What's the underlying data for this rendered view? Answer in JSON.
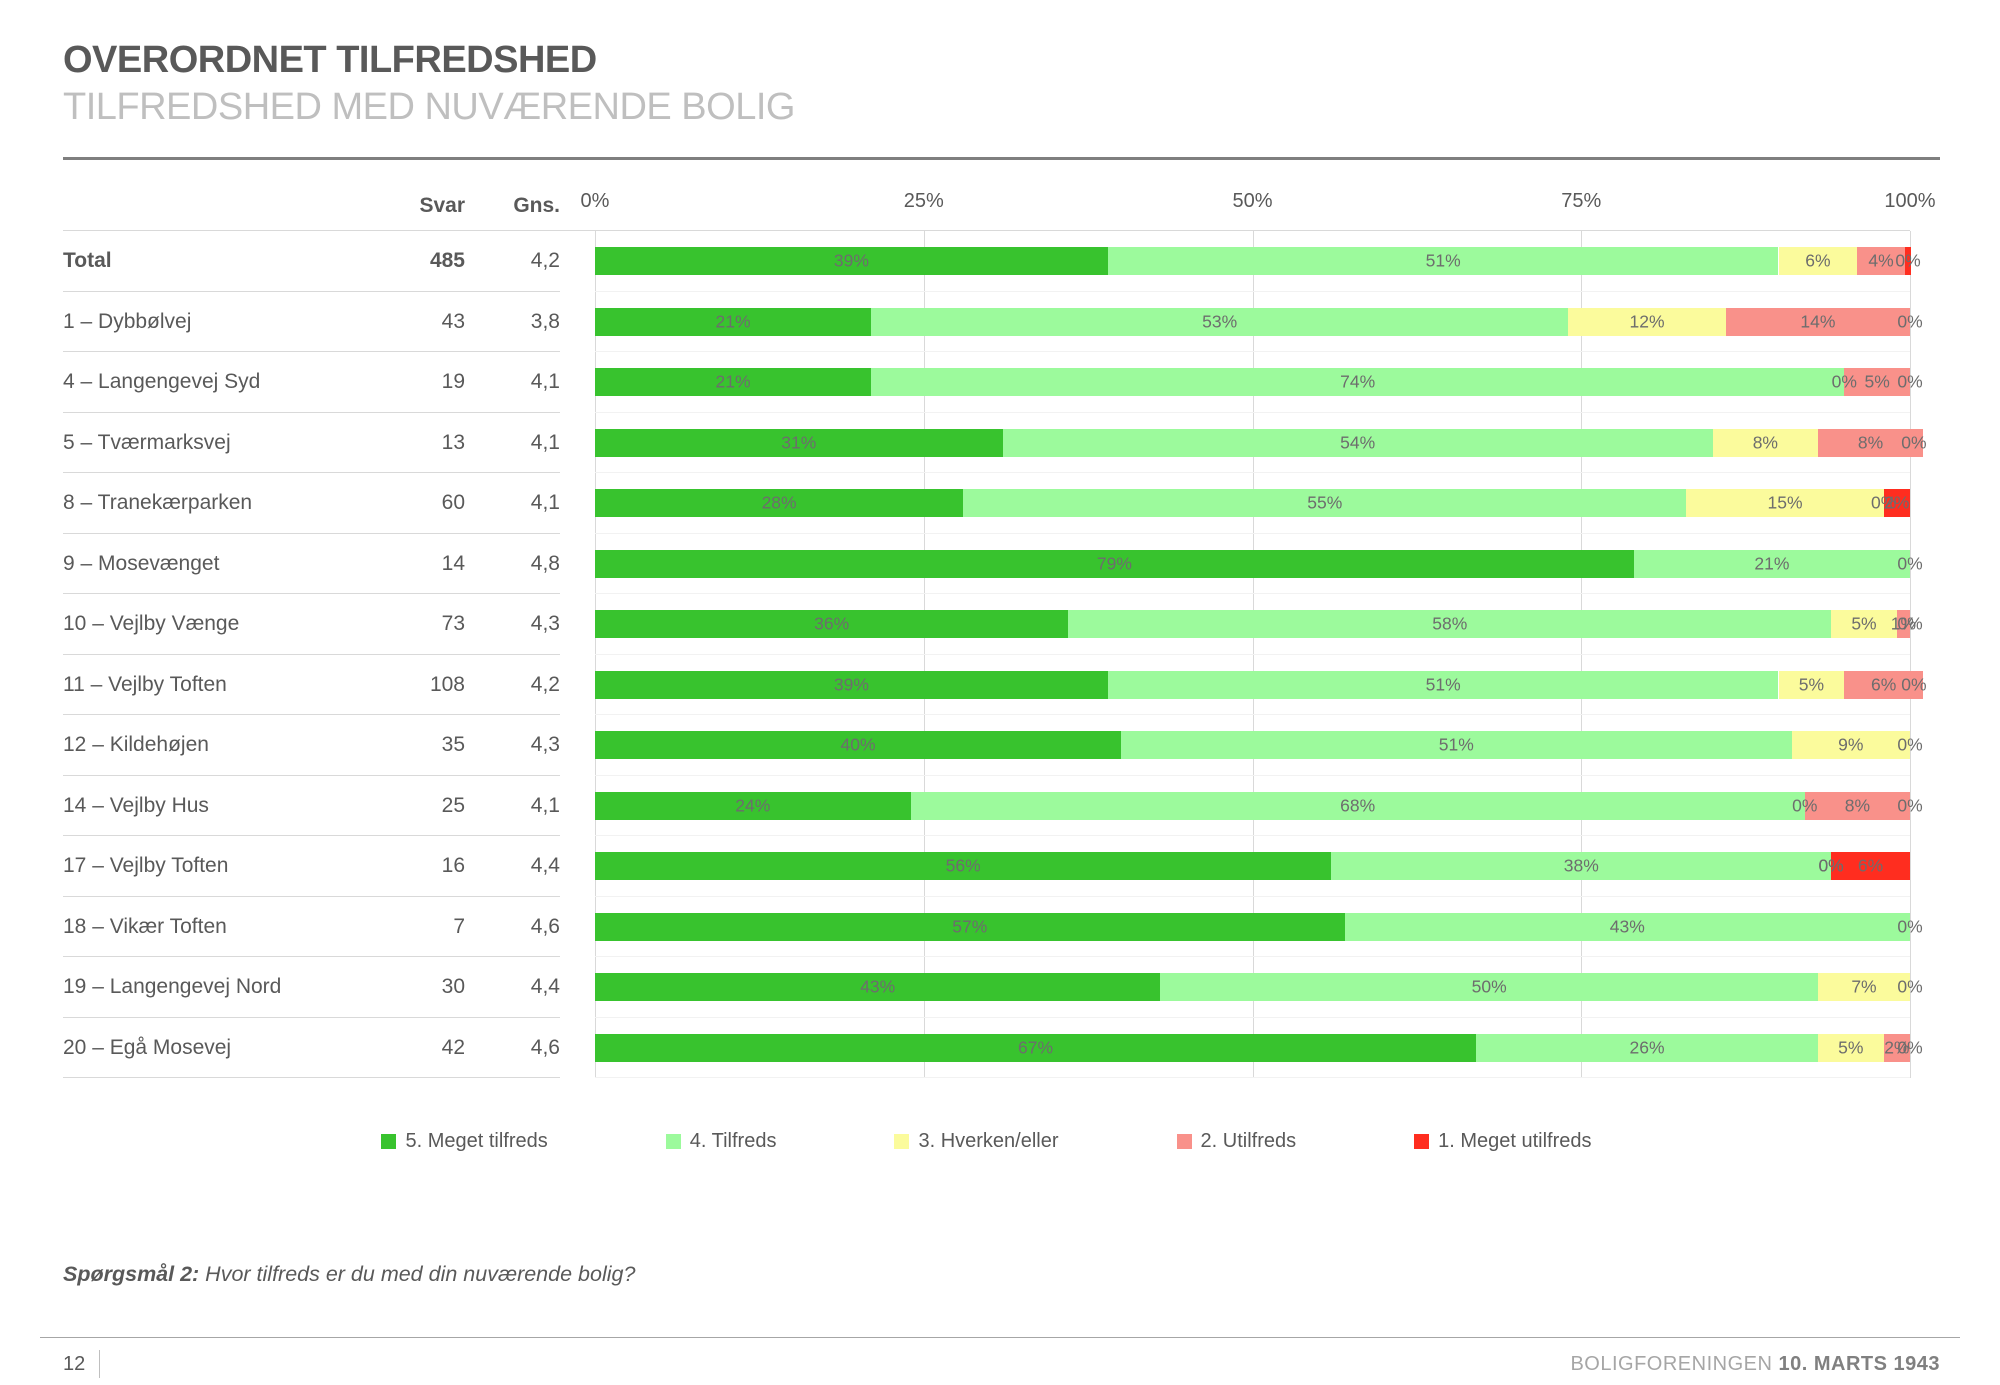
{
  "header": {
    "title": "OVERORDNET TILFREDSHED",
    "subtitle": "TILFREDSHED MED NUVÆRENDE BOLIG"
  },
  "table_headers": {
    "svar": "Svar",
    "gns": "Gns."
  },
  "chart_data": {
    "type": "bar",
    "stacked": true,
    "orientation": "horizontal",
    "xlim": [
      0,
      100
    ],
    "x_tick_labels": [
      "0%",
      "25%",
      "50%",
      "75%",
      "100%"
    ],
    "x_tick_values": [
      0,
      25,
      50,
      75,
      100
    ],
    "grid": "vertical",
    "legend_position": "bottom",
    "series_names": [
      "5. Meget tilfreds",
      "4. Tilfreds",
      "3. Hverken/eller",
      "2. Utilfreds",
      "1. Meget utilfreds"
    ],
    "series_colors": [
      "#38c32e",
      "#9cfa9c",
      "#fbfb9c",
      "#f9918a",
      "#ff2d1f"
    ],
    "rows": [
      {
        "label": "Total",
        "svar": "485",
        "gns": "4,2",
        "bold": true,
        "values": [
          39,
          51,
          6,
          4,
          0
        ],
        "widths": [
          39,
          51,
          6,
          3.6,
          0.5
        ],
        "value_labels": [
          "39%",
          "51%",
          "6%",
          "4%",
          "0%"
        ]
      },
      {
        "label": "1 – Dybbølvej",
        "svar": "43",
        "gns": "3,8",
        "values": [
          21,
          53,
          12,
          14,
          0
        ],
        "value_labels": [
          "21%",
          "53%",
          "12%",
          "14%",
          "0%"
        ]
      },
      {
        "label": "4 – Langengevej Syd",
        "svar": "19",
        "gns": "4,1",
        "values": [
          21,
          74,
          0,
          5,
          0
        ],
        "value_labels": [
          "21%",
          "74%",
          "0%",
          "5%",
          "0%"
        ]
      },
      {
        "label": "5 – Tværmarksvej",
        "svar": "13",
        "gns": "4,1",
        "values": [
          31,
          54,
          8,
          8,
          0
        ],
        "value_labels": [
          "31%",
          "54%",
          "8%",
          "8%",
          "0%"
        ]
      },
      {
        "label": "8 – Tranekærparken",
        "svar": "60",
        "gns": "4,1",
        "values": [
          28,
          55,
          15,
          0,
          2
        ],
        "value_labels": [
          "28%",
          "55%",
          "15%",
          "0%",
          "2%"
        ]
      },
      {
        "label": "9 – Mosevænget",
        "svar": "14",
        "gns": "4,8",
        "values": [
          79,
          21,
          0,
          0,
          0
        ],
        "value_labels": [
          "79%",
          "21%",
          "",
          "",
          "0%"
        ]
      },
      {
        "label": "10 – Vejlby Vænge",
        "svar": "73",
        "gns": "4,3",
        "values": [
          36,
          58,
          5,
          1,
          0
        ],
        "value_labels": [
          "36%",
          "58%",
          "5%",
          "1%",
          "0%"
        ]
      },
      {
        "label": "11 – Vejlby Toften",
        "svar": "108",
        "gns": "4,2",
        "values": [
          39,
          51,
          5,
          6,
          0
        ],
        "value_labels": [
          "39%",
          "51%",
          "5%",
          "6%",
          "0%"
        ]
      },
      {
        "label": "12 – Kildehøjen",
        "svar": "35",
        "gns": "4,3",
        "values": [
          40,
          51,
          9,
          0,
          0
        ],
        "value_labels": [
          "40%",
          "51%",
          "9%",
          "",
          "0%"
        ]
      },
      {
        "label": "14 – Vejlby Hus",
        "svar": "25",
        "gns": "4,1",
        "values": [
          24,
          68,
          0,
          8,
          0
        ],
        "value_labels": [
          "24%",
          "68%",
          "0%",
          "8%",
          "0%"
        ]
      },
      {
        "label": "17 – Vejlby Toften",
        "svar": "16",
        "gns": "4,4",
        "values": [
          56,
          38,
          0,
          0,
          6
        ],
        "value_labels": [
          "56%",
          "38%",
          "0%",
          "0%",
          "6%"
        ]
      },
      {
        "label": "18 – Vikær Toften",
        "svar": "7",
        "gns": "4,6",
        "values": [
          57,
          43,
          0,
          0,
          0
        ],
        "value_labels": [
          "57%",
          "43%",
          "",
          "",
          "0%"
        ]
      },
      {
        "label": "19 – Langengevej Nord",
        "svar": "30",
        "gns": "4,4",
        "values": [
          43,
          50,
          7,
          0,
          0
        ],
        "value_labels": [
          "43%",
          "50%",
          "7%",
          "",
          "0%"
        ]
      },
      {
        "label": "20 – Egå Mosevej",
        "svar": "42",
        "gns": "4,6",
        "values": [
          67,
          26,
          5,
          2,
          0
        ],
        "value_labels": [
          "67%",
          "26%",
          "5%",
          "2%",
          "0%"
        ]
      }
    ]
  },
  "legend": {
    "items": [
      {
        "label": "5. Meget tilfreds",
        "color": "#38c32e"
      },
      {
        "label": "4. Tilfreds",
        "color": "#9cfa9c"
      },
      {
        "label": "3. Hverken/eller",
        "color": "#fbfb9c"
      },
      {
        "label": "2. Utilfreds",
        "color": "#f9918a"
      },
      {
        "label": "1. Meget utilfreds",
        "color": "#ff2d1f"
      }
    ]
  },
  "footnote": {
    "prefix": "Spørgsmål 2:",
    "text": " Hvor tilfreds er du med din nuværende bolig?"
  },
  "footer": {
    "page": "12",
    "org": "BOLIGFORENINGEN ",
    "date": "10. MARTS 1943"
  }
}
